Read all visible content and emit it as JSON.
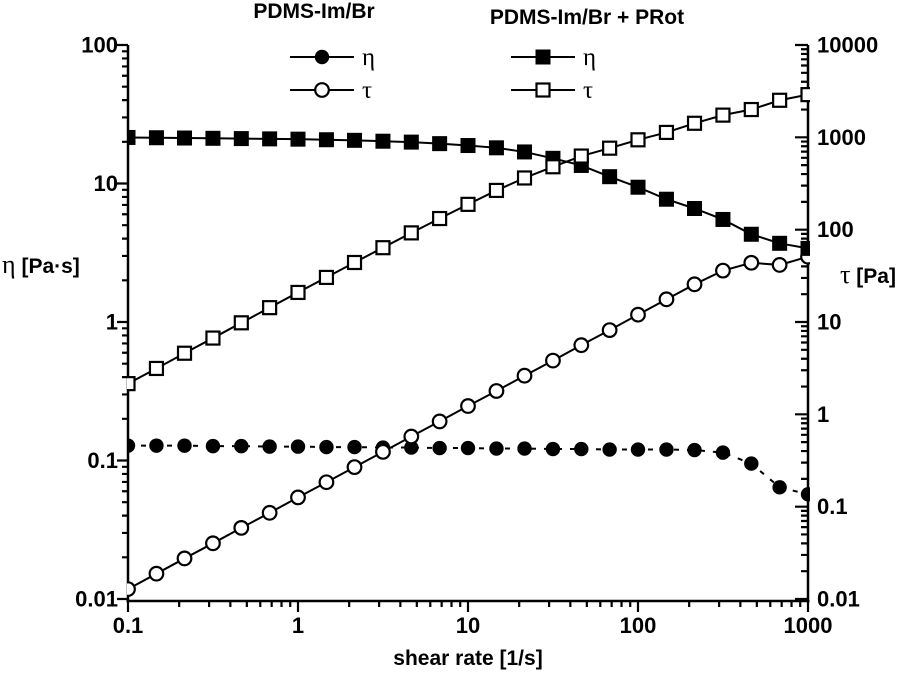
{
  "figure": {
    "legend": {
      "groups": [
        {
          "title": "PDMS-Im/Br",
          "entries": [
            {
              "symbol": "filled-circle",
              "label": "η"
            },
            {
              "symbol": "open-circle",
              "label": "τ"
            }
          ]
        },
        {
          "title": "PDMS-Im/Br + PRot",
          "entries": [
            {
              "symbol": "filled-square",
              "label": "η"
            },
            {
              "symbol": "open-square",
              "label": "τ"
            }
          ]
        }
      ]
    },
    "axes": {
      "x": {
        "label": "shear rate [1/s]",
        "scale": "log",
        "min": 0.1,
        "max": 1000,
        "ticks": [
          0.1,
          1,
          10,
          100,
          1000
        ],
        "tick_labels": [
          "0.1",
          "1",
          "10",
          "100",
          "1000"
        ]
      },
      "y_left": {
        "symbol": "η",
        "units": "[Pa·s]",
        "label": "η [Pa·s]",
        "scale": "log",
        "min": 0.01,
        "max": 100,
        "ticks": [
          100,
          10,
          1,
          0.1,
          0.01
        ],
        "tick_labels": [
          "100",
          "10",
          "1",
          "0.1",
          "0.01"
        ]
      },
      "y_right": {
        "symbol": "τ",
        "units": "[Pa]",
        "label": "τ [Pa]",
        "scale": "log",
        "min": 0.01,
        "max": 10000,
        "ticks": [
          10000,
          1000,
          100,
          10,
          1,
          0.1,
          0.01
        ],
        "tick_labels": [
          "10000",
          "1000",
          "100",
          "10",
          "1",
          "0.1",
          "0.01"
        ]
      }
    },
    "colors": {
      "foreground": "#000000",
      "background": "#ffffff"
    }
  },
  "chart_data": {
    "type": "line",
    "xlabel": "shear rate [1/s]",
    "ylabel_left": "η [Pa·s]",
    "ylabel_right": "τ [Pa]",
    "xlim": [
      0.1,
      1000
    ],
    "ylim_left": [
      0.01,
      100
    ],
    "ylim_right": [
      0.01,
      10000
    ],
    "x_scale": "log",
    "y_scale": "log",
    "grid": false,
    "legend_position": "top",
    "x": [
      0.1,
      0.147,
      0.215,
      0.316,
      0.464,
      0.681,
      1,
      1.47,
      2.15,
      3.16,
      4.64,
      6.81,
      10,
      14.7,
      21.5,
      31.6,
      46.4,
      68.1,
      100,
      147,
      215,
      316,
      464,
      681,
      1000
    ],
    "series": [
      {
        "name": "PDMS-Im/Br η",
        "group": "PDMS-Im/Br",
        "quantity": "η",
        "axis": "left",
        "marker": "filled-circle",
        "line": "dashed",
        "values": [
          0.128,
          0.128,
          0.128,
          0.127,
          0.127,
          0.126,
          0.126,
          0.125,
          0.125,
          0.124,
          0.124,
          0.123,
          0.123,
          0.122,
          0.122,
          0.121,
          0.121,
          0.12,
          0.12,
          0.12,
          0.119,
          0.114,
          0.095,
          0.064,
          0.057
        ]
      },
      {
        "name": "PDMS-Im/Br τ",
        "group": "PDMS-Im/Br",
        "quantity": "τ",
        "axis": "right",
        "marker": "open-circle",
        "line": "solid",
        "values": [
          0.0128,
          0.0188,
          0.0275,
          0.0401,
          0.0589,
          0.0858,
          0.126,
          0.184,
          0.268,
          0.392,
          0.575,
          0.838,
          1.23,
          1.79,
          2.62,
          3.82,
          5.61,
          8.17,
          12.0,
          17.6,
          25.6,
          36.0,
          43.8,
          41.5,
          51.0
        ]
      },
      {
        "name": "PDMS-Im/Br + PRot η",
        "group": "PDMS-Im/Br + PRot",
        "quantity": "η",
        "axis": "left",
        "marker": "filled-square",
        "line": "solid",
        "values": [
          21.5,
          21.4,
          21.3,
          21.2,
          21.1,
          21.0,
          20.9,
          20.7,
          20.5,
          20.2,
          19.9,
          19.4,
          18.8,
          18.1,
          16.9,
          15.2,
          13.5,
          11.2,
          9.4,
          7.7,
          6.6,
          5.5,
          4.3,
          3.7,
          3.4
        ]
      },
      {
        "name": "PDMS-Im/Br + PRot τ",
        "group": "PDMS-Im/Br + PRot",
        "quantity": "τ",
        "axis": "right",
        "marker": "open-square",
        "line": "solid",
        "values": [
          2.15,
          3.14,
          4.59,
          6.7,
          9.8,
          14.3,
          20.9,
          30.4,
          44.1,
          63.8,
          92.3,
          132,
          188,
          266,
          363,
          480,
          627,
          763,
          940,
          1130,
          1420,
          1740,
          2000,
          2520,
          2900
        ]
      }
    ]
  }
}
